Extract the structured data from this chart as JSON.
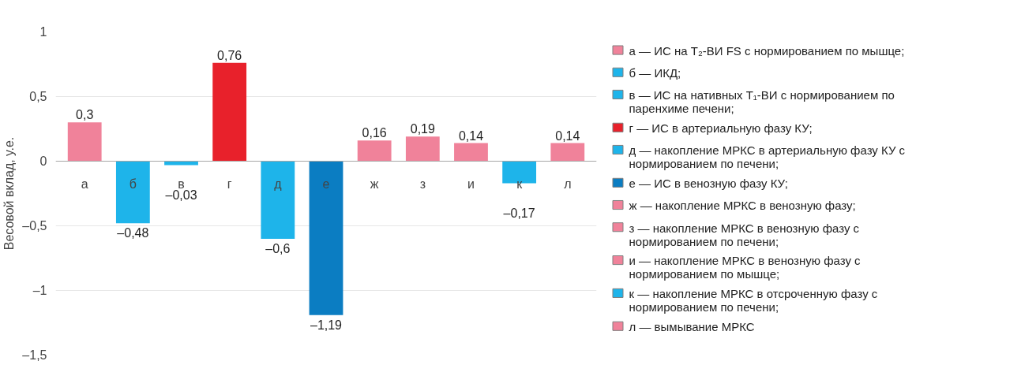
{
  "chart_data": {
    "type": "bar",
    "ylabel": "Весовой вклад, у.е.",
    "categories": [
      "а",
      "б",
      "в",
      "г",
      "д",
      "е",
      "ж",
      "з",
      "и",
      "к",
      "л"
    ],
    "ylim": [
      -1.5,
      1
    ],
    "yticks": [
      {
        "value": 1,
        "label": "1"
      },
      {
        "value": 0.5,
        "label": "0,5"
      },
      {
        "value": 0,
        "label": "0"
      },
      {
        "value": -0.5,
        "label": "–0,5"
      },
      {
        "value": -1,
        "label": "–1"
      },
      {
        "value": -1.5,
        "label": "–1,5"
      }
    ],
    "grid": "y",
    "legend": "right",
    "series": [
      {
        "name": "а — ИС на T₂-ВИ FS с нормированием по мышце;",
        "color": "#f0829a",
        "values": [
          0.3,
          null,
          null,
          null,
          null,
          null,
          null,
          null,
          null,
          null,
          null
        ],
        "value_labels": [
          "0,3",
          null,
          null,
          null,
          null,
          null,
          null,
          null,
          null,
          null,
          null
        ]
      },
      {
        "name": "б — ИКД;",
        "color": "#1eb4ea",
        "values": [
          null,
          -0.48,
          null,
          null,
          null,
          null,
          null,
          null,
          null,
          null,
          null
        ],
        "value_labels": [
          null,
          "–0,48",
          null,
          null,
          null,
          null,
          null,
          null,
          null,
          null,
          null
        ]
      },
      {
        "name": "в — ИС на нативных T₁-ВИ с нормированием по паренхиме печени;",
        "color": "#1eb4ea",
        "values": [
          null,
          null,
          -0.03,
          null,
          null,
          null,
          null,
          null,
          null,
          null,
          null
        ],
        "value_labels": [
          null,
          null,
          "–0,03",
          null,
          null,
          null,
          null,
          null,
          null,
          null,
          null
        ]
      },
      {
        "name": "г — ИС в артериальную фазу КУ;",
        "color": "#e8212b",
        "values": [
          null,
          null,
          null,
          0.76,
          null,
          null,
          null,
          null,
          null,
          null,
          null
        ],
        "value_labels": [
          null,
          null,
          null,
          "0,76",
          null,
          null,
          null,
          null,
          null,
          null,
          null
        ]
      },
      {
        "name": "д — накопление МРКС в артериальную фазу КУ с нормированием по печени;",
        "color": "#1eb4ea",
        "values": [
          null,
          null,
          null,
          null,
          -0.6,
          null,
          null,
          null,
          null,
          null,
          null
        ],
        "value_labels": [
          null,
          null,
          null,
          null,
          "–0,6",
          null,
          null,
          null,
          null,
          null,
          null
        ]
      },
      {
        "name": "е — ИС в венозную фазу КУ;",
        "color": "#0b7dc2",
        "values": [
          null,
          null,
          null,
          null,
          null,
          -1.19,
          null,
          null,
          null,
          null,
          null
        ],
        "value_labels": [
          null,
          null,
          null,
          null,
          null,
          "–1,19",
          null,
          null,
          null,
          null,
          null
        ]
      },
      {
        "name": "ж — накопление МРКС в венозную фазу;",
        "color": "#f0829a",
        "values": [
          null,
          null,
          null,
          null,
          null,
          null,
          0.16,
          null,
          null,
          null,
          null
        ],
        "value_labels": [
          null,
          null,
          null,
          null,
          null,
          null,
          "0,16",
          null,
          null,
          null,
          null
        ]
      },
      {
        "name": "з — накопление МРКС в венозную фазу с нормированием по печени;",
        "color": "#f0829a",
        "values": [
          null,
          null,
          null,
          null,
          null,
          null,
          null,
          0.19,
          null,
          null,
          null
        ],
        "value_labels": [
          null,
          null,
          null,
          null,
          null,
          null,
          null,
          "0,19",
          null,
          null,
          null
        ]
      },
      {
        "name": "и — накопление МРКС в венозную фазу с нормированием по мышце;",
        "color": "#f0829a",
        "values": [
          null,
          null,
          null,
          null,
          null,
          null,
          null,
          null,
          0.14,
          null,
          null
        ],
        "value_labels": [
          null,
          null,
          null,
          null,
          null,
          null,
          null,
          null,
          "0,14",
          null,
          null
        ]
      },
      {
        "name": "к — накопление МРКС в отсроченную фазу с нормированием по печени;",
        "color": "#1eb4ea",
        "values": [
          null,
          null,
          null,
          null,
          null,
          null,
          null,
          null,
          null,
          -0.17,
          null
        ],
        "value_labels": [
          null,
          null,
          null,
          null,
          null,
          null,
          null,
          null,
          null,
          "–0,17",
          null
        ]
      },
      {
        "name": "л — вымывание МРКС",
        "color": "#f0829a",
        "values": [
          null,
          null,
          null,
          null,
          null,
          null,
          null,
          null,
          null,
          null,
          0.14
        ],
        "value_labels": [
          null,
          null,
          null,
          null,
          null,
          null,
          null,
          null,
          null,
          null,
          "0,14"
        ]
      }
    ]
  }
}
